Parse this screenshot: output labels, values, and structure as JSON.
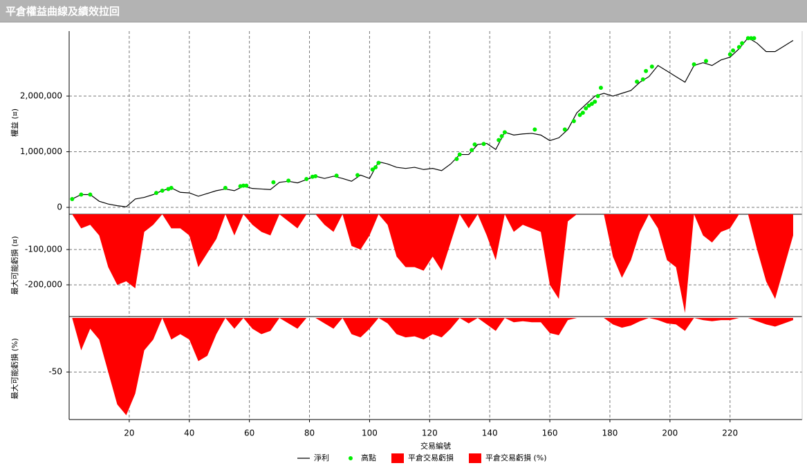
{
  "chart_data": [
    {
      "type": "line",
      "title": "平倉權益曲線及績效拉回",
      "ylabel": "權益 (¤)",
      "xlim": [
        0,
        244
      ],
      "ylim": [
        -124000,
        3168000
      ],
      "yticks": [
        {
          "value": 0,
          "label": "0"
        },
        {
          "value": 1000000,
          "label": "1,000,000"
        },
        {
          "value": 2000000,
          "label": "2,000,000"
        }
      ],
      "x": [
        1,
        4,
        7,
        10,
        13,
        16,
        19,
        22,
        25,
        28,
        31,
        34,
        37,
        40,
        43,
        46,
        49,
        52,
        55,
        58,
        61,
        64,
        67,
        70,
        73,
        76,
        79,
        82,
        85,
        88,
        91,
        94,
        97,
        100,
        103,
        106,
        109,
        112,
        115,
        118,
        121,
        124,
        127,
        130,
        133,
        136,
        139,
        142,
        145,
        148,
        151,
        154,
        157,
        160,
        163,
        166,
        169,
        172,
        175,
        178,
        181,
        184,
        187,
        190,
        193,
        196,
        199,
        202,
        205,
        208,
        211,
        214,
        217,
        220,
        223,
        226,
        229,
        232,
        235,
        238,
        241
      ],
      "series": [
        {
          "name": "淨利",
          "type": "line",
          "color": "#000000",
          "values": [
            150000,
            230000,
            230000,
            110000,
            60000,
            30000,
            10000,
            150000,
            180000,
            230000,
            300000,
            350000,
            270000,
            260000,
            200000,
            250000,
            300000,
            330000,
            300000,
            380000,
            340000,
            330000,
            320000,
            450000,
            470000,
            440000,
            500000,
            560000,
            520000,
            560000,
            520000,
            470000,
            580000,
            520000,
            820000,
            780000,
            720000,
            700000,
            720000,
            680000,
            700000,
            660000,
            780000,
            950000,
            950000,
            1130000,
            1150000,
            1040000,
            1350000,
            1300000,
            1320000,
            1330000,
            1300000,
            1200000,
            1250000,
            1400000,
            1700000,
            1850000,
            2000000,
            2050000,
            2000000,
            2050000,
            2100000,
            2250000,
            2350000,
            2550000,
            2450000,
            2350000,
            2250000,
            2550000,
            2600000,
            2550000,
            2650000,
            2700000,
            2850000,
            3050000,
            2950000,
            2800000,
            2800000,
            2900000,
            3000000
          ]
        },
        {
          "name": "高點",
          "type": "scatter",
          "color": "#00ee00",
          "x": [
            1,
            4,
            7,
            29,
            31,
            33,
            34,
            52,
            57,
            58,
            59,
            68,
            73,
            79,
            81,
            82,
            89,
            96,
            101,
            102,
            103,
            129,
            130,
            134,
            135,
            138,
            143,
            144,
            145,
            155,
            165,
            168,
            170,
            171,
            172,
            173,
            174,
            175,
            176,
            177,
            189,
            191,
            192,
            194,
            208,
            212,
            220,
            221,
            223,
            224,
            226,
            227,
            228
          ],
          "values": [
            150000,
            230000,
            230000,
            260000,
            300000,
            330000,
            350000,
            350000,
            380000,
            390000,
            390000,
            450000,
            480000,
            510000,
            550000,
            560000,
            570000,
            580000,
            680000,
            720000,
            800000,
            870000,
            950000,
            1030000,
            1130000,
            1140000,
            1210000,
            1280000,
            1350000,
            1400000,
            1400000,
            1550000,
            1660000,
            1700000,
            1780000,
            1830000,
            1860000,
            1900000,
            2000000,
            2150000,
            2260000,
            2300000,
            2450000,
            2530000,
            2570000,
            2630000,
            2750000,
            2820000,
            2880000,
            2950000,
            3040000,
            3040000,
            3040000
          ]
        }
      ]
    },
    {
      "type": "area",
      "ylabel": "最大可能虧損 (¤)",
      "xlim": [
        0,
        244
      ],
      "ylim": [
        -290000,
        0
      ],
      "yticks": [
        {
          "value": -200000,
          "label": "-200,000"
        },
        {
          "value": -100000,
          "label": "-100,000"
        }
      ],
      "x": [
        1,
        4,
        7,
        10,
        13,
        16,
        19,
        22,
        25,
        28,
        31,
        34,
        37,
        40,
        43,
        46,
        49,
        52,
        55,
        58,
        61,
        64,
        67,
        70,
        73,
        76,
        79,
        82,
        85,
        88,
        91,
        94,
        97,
        100,
        103,
        106,
        109,
        112,
        115,
        118,
        121,
        124,
        127,
        130,
        133,
        136,
        139,
        142,
        145,
        148,
        151,
        154,
        157,
        160,
        163,
        166,
        169,
        172,
        175,
        178,
        181,
        184,
        187,
        190,
        193,
        196,
        199,
        202,
        205,
        208,
        211,
        214,
        217,
        220,
        223,
        226,
        229,
        232,
        235,
        238,
        241
      ],
      "series": [
        {
          "name": "平倉交易虧損",
          "type": "area",
          "color": "#ff0000",
          "values": [
            0,
            -40000,
            -30000,
            -60000,
            -150000,
            -200000,
            -190000,
            -210000,
            -50000,
            -30000,
            0,
            -40000,
            -40000,
            -60000,
            -150000,
            -110000,
            -70000,
            0,
            -60000,
            0,
            -30000,
            -50000,
            -60000,
            0,
            -20000,
            -40000,
            0,
            0,
            -30000,
            -50000,
            0,
            -90000,
            -100000,
            -60000,
            0,
            -30000,
            -120000,
            -150000,
            -150000,
            -160000,
            -120000,
            -160000,
            -80000,
            0,
            -40000,
            0,
            -60000,
            -130000,
            0,
            -50000,
            -30000,
            -40000,
            -50000,
            -200000,
            -240000,
            -20000,
            0,
            0,
            0,
            0,
            -120000,
            -180000,
            -130000,
            -50000,
            0,
            -40000,
            -130000,
            -150000,
            -280000,
            0,
            -60000,
            -80000,
            -50000,
            -40000,
            0,
            0,
            -100000,
            -190000,
            -240000,
            -150000,
            -60000
          ]
        }
      ]
    },
    {
      "type": "area",
      "ylabel": "最大可能虧損 (%)",
      "xlabel": "交易編號",
      "xlim": [
        0,
        244
      ],
      "ylim": [
        -94,
        0
      ],
      "yticks": [
        -50
      ],
      "xticks": [
        20,
        40,
        60,
        80,
        100,
        120,
        140,
        160,
        180,
        200,
        220
      ],
      "x": [
        1,
        4,
        7,
        10,
        13,
        16,
        19,
        22,
        25,
        28,
        31,
        34,
        37,
        40,
        43,
        46,
        49,
        52,
        55,
        58,
        61,
        64,
        67,
        70,
        73,
        76,
        79,
        82,
        85,
        88,
        91,
        94,
        97,
        100,
        103,
        106,
        109,
        112,
        115,
        118,
        121,
        124,
        127,
        130,
        133,
        136,
        139,
        142,
        145,
        148,
        151,
        154,
        157,
        160,
        163,
        166,
        169,
        172,
        175,
        178,
        181,
        184,
        187,
        190,
        193,
        196,
        199,
        202,
        205,
        208,
        211,
        214,
        217,
        220,
        223,
        226,
        229,
        232,
        235,
        238,
        241
      ],
      "series": [
        {
          "name": "平倉交易虧損 (%)",
          "type": "area",
          "color": "#ff0000",
          "values": [
            0,
            -30,
            -10,
            -20,
            -50,
            -80,
            -90,
            -70,
            -30,
            -20,
            0,
            -20,
            -15,
            -20,
            -40,
            -35,
            -15,
            0,
            -10,
            0,
            -10,
            -15,
            -12,
            0,
            -5,
            -10,
            0,
            0,
            -5,
            -10,
            0,
            -15,
            -18,
            -10,
            0,
            -5,
            -15,
            -18,
            -17,
            -20,
            -15,
            -18,
            -10,
            0,
            -5,
            0,
            -6,
            -12,
            0,
            -4,
            -3,
            -4,
            -4,
            -14,
            -16,
            -2,
            0,
            0,
            0,
            0,
            -6,
            -9,
            -7,
            -3,
            0,
            -2,
            -5,
            -6,
            -12,
            0,
            -2,
            -3,
            -2,
            -2,
            0,
            0,
            -3,
            -6,
            -8,
            -5,
            -2
          ]
        }
      ]
    }
  ]
}
